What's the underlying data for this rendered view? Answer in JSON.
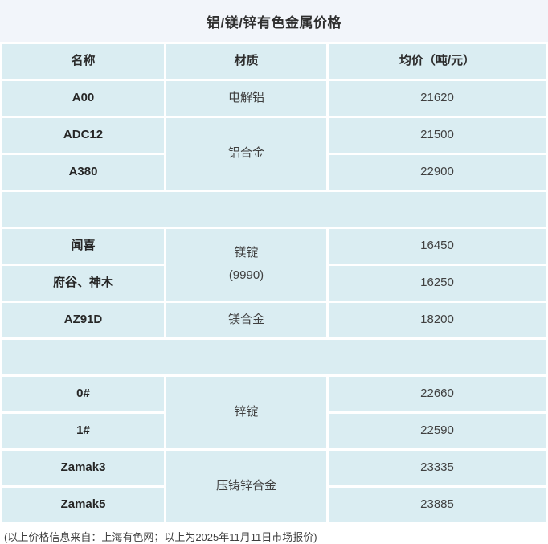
{
  "title": "铝/镁/锌有色金属价格",
  "table": {
    "headers": {
      "name": "名称",
      "material": "材质",
      "price": "均价（吨/元）"
    },
    "aluminum": {
      "a00": {
        "name": "A00",
        "material": "电解铝",
        "price": "21620"
      },
      "alloy_material": "铝合金",
      "adc12": {
        "name": "ADC12",
        "price": "21500"
      },
      "a380": {
        "name": "A380",
        "price": "22900"
      }
    },
    "magnesium": {
      "ingot_material_line1": "镁锭",
      "ingot_material_line2": "(9990)",
      "wenxi": {
        "name": "闻喜",
        "price": "16450"
      },
      "fugu_shenmu": {
        "name": "府谷、神木",
        "price": "16250"
      },
      "az91d": {
        "name": "AZ91D",
        "material": "镁合金",
        "price": "18200"
      }
    },
    "zinc": {
      "ingot_material": "锌锭",
      "grade0": {
        "name": "0#",
        "price": "22660"
      },
      "grade1": {
        "name": "1#",
        "price": "22590"
      },
      "diecast_material": "压铸锌合金",
      "zamak3": {
        "name": "Zamak3",
        "price": "23335"
      },
      "zamak5": {
        "name": "Zamak5",
        "price": "23885"
      }
    }
  },
  "footer": {
    "note": "(以上价格信息来自：上海有色网；以上为2025年11月11日市场报价)"
  },
  "colors": {
    "cell_bg": "#daedf2",
    "title_bg": "#f2f5fa",
    "divider": "#ffffff",
    "name_text": "#262626",
    "value_text": "#404040"
  },
  "chart_data": {
    "type": "table",
    "title": "铝/镁/锌有色金属价格",
    "columns": [
      "名称",
      "材质",
      "均价（吨/元）"
    ],
    "rows": [
      [
        "A00",
        "电解铝",
        21620
      ],
      [
        "ADC12",
        "铝合金",
        21500
      ],
      [
        "A380",
        "铝合金",
        22900
      ],
      [
        "闻喜",
        "镁锭(9990)",
        16450
      ],
      [
        "府谷、神木",
        "镁锭(9990)",
        16250
      ],
      [
        "AZ91D",
        "镁合金",
        18200
      ],
      [
        "0#",
        "锌锭",
        22660
      ],
      [
        "1#",
        "锌锭",
        22590
      ],
      [
        "Zamak3",
        "压铸锌合金",
        23335
      ],
      [
        "Zamak5",
        "压铸锌合金",
        23885
      ]
    ]
  }
}
